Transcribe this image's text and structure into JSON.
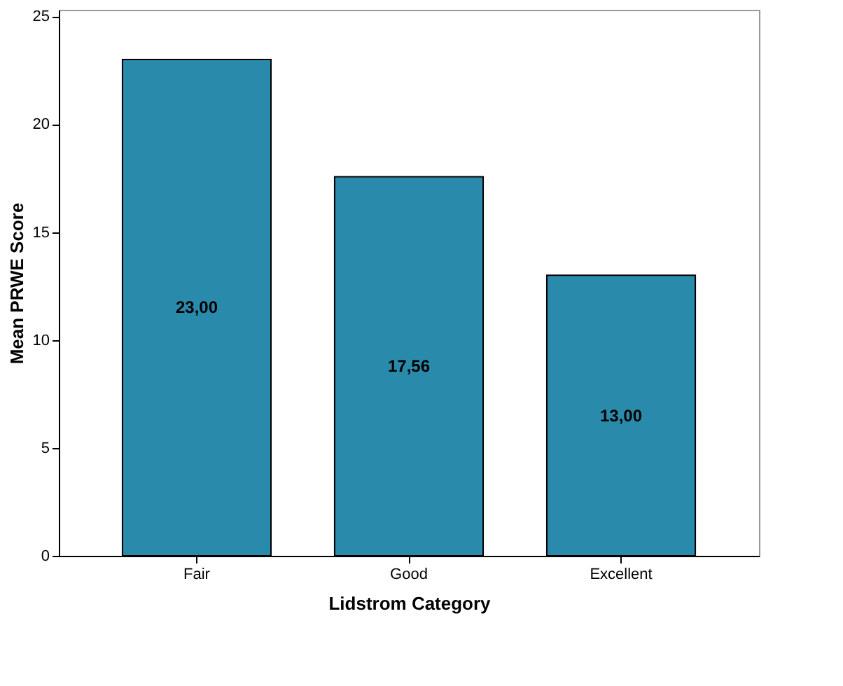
{
  "chart_data": {
    "type": "bar",
    "xlabel": "Lidstrom Category",
    "ylabel": "Mean PRWE Score",
    "categories": [
      "Fair",
      "Good",
      "Excellent"
    ],
    "values": [
      23.0,
      17.56,
      13.0
    ],
    "value_labels": [
      "23,00",
      "17,56",
      "13,00"
    ],
    "color": "#2a8aab",
    "ylim": [
      0,
      25.3
    ],
    "yticks": [
      0,
      5,
      10,
      15,
      20,
      25
    ],
    "grid": false
  }
}
